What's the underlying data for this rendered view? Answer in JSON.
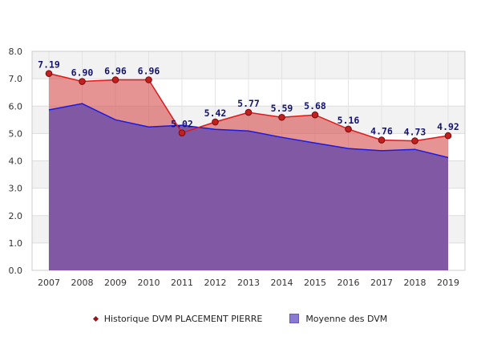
{
  "chart_data": {
    "type": "area",
    "categories": [
      "2007",
      "2008",
      "2009",
      "2010",
      "2011",
      "2012",
      "2013",
      "2014",
      "2015",
      "2016",
      "2017",
      "2018",
      "2019"
    ],
    "ylim": [
      0,
      8
    ],
    "yticks": [
      "0.0",
      "1.0",
      "2.0",
      "3.0",
      "4.0",
      "5.0",
      "6.0",
      "7.0",
      "8.0"
    ],
    "grid": true,
    "legend_position": "bottom",
    "series": [
      {
        "name": "Historique DVM PLACEMENT PIERRE",
        "values": [
          7.19,
          6.9,
          6.96,
          6.96,
          5.02,
          5.42,
          5.77,
          5.59,
          5.68,
          5.16,
          4.76,
          4.73,
          4.92
        ],
        "labels": [
          "7.19",
          "6.90",
          "6.96",
          "6.96",
          "5.02",
          "5.42",
          "5.77",
          "5.59",
          "5.68",
          "5.16",
          "4.76",
          "4.73",
          "4.92"
        ],
        "color": "#e01818"
      },
      {
        "name": "Moyenne des DVM",
        "values": [
          5.86,
          6.09,
          5.5,
          5.24,
          5.3,
          5.15,
          5.09,
          4.86,
          4.65,
          4.45,
          4.37,
          4.42,
          4.12
        ],
        "color": "#1a1ae6"
      }
    ]
  }
}
